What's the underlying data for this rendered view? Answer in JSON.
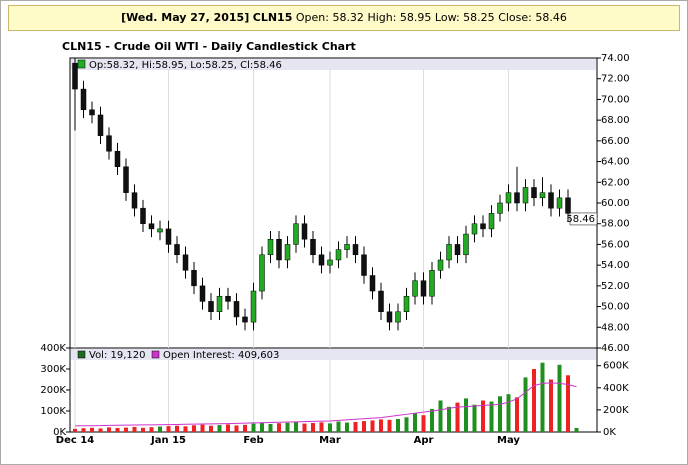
{
  "header": {
    "date": "[Wed. May 27, 2015]",
    "symbol": "CLN15",
    "open": "Open: 58.32",
    "high": "High: 58.95",
    "low": "Low: 58.25",
    "close": "Close: 58.46"
  },
  "chart_data": [
    {
      "type": "candlestick",
      "title": "CLN15 - Crude Oil WTI - Daily Candlestick Chart",
      "legend": "Op:58.32, Hi:58.95, Lo:58.25, Cl:58.46",
      "open": [
        73.5,
        71.0,
        69.0,
        68.5,
        66.5,
        65.0,
        63.5,
        61.0,
        59.5,
        58.0,
        57.2,
        57.5,
        56.0,
        55.0,
        53.5,
        52.0,
        50.5,
        49.5,
        51.0,
        50.5,
        49.0,
        48.5,
        51.5,
        55.0,
        56.5,
        54.5,
        56.0,
        58.0,
        56.5,
        55.0,
        54.0,
        54.5,
        55.5,
        56.0,
        55.0,
        53.0,
        51.5,
        49.5,
        48.5,
        49.5,
        51.0,
        52.5,
        51.0,
        53.5,
        54.5,
        56.0,
        55.0,
        57.0,
        58.0,
        57.5,
        59.0,
        60.0,
        61.0,
        60.0,
        61.5,
        60.5,
        61.0,
        59.5,
        60.5,
        58.32
      ],
      "high": [
        74.0,
        71.8,
        69.8,
        69.3,
        67.3,
        65.8,
        64.3,
        61.8,
        60.3,
        58.8,
        58.3,
        58.3,
        56.8,
        55.8,
        54.3,
        52.8,
        51.3,
        51.8,
        51.8,
        51.3,
        49.8,
        52.3,
        55.8,
        57.3,
        57.3,
        56.8,
        58.8,
        58.8,
        57.3,
        55.8,
        55.3,
        56.3,
        56.8,
        56.8,
        55.8,
        53.8,
        52.3,
        50.3,
        50.3,
        51.8,
        53.3,
        53.3,
        54.3,
        55.3,
        56.8,
        56.8,
        57.8,
        58.8,
        58.8,
        59.8,
        60.8,
        61.8,
        63.5,
        62.3,
        62.3,
        62.5,
        61.8,
        61.3,
        61.3,
        58.95
      ],
      "low": [
        67.0,
        68.2,
        67.7,
        65.7,
        64.2,
        62.7,
        60.2,
        58.7,
        57.2,
        56.7,
        56.4,
        55.2,
        54.2,
        52.7,
        51.2,
        49.7,
        48.7,
        48.7,
        49.7,
        48.2,
        47.7,
        47.7,
        50.7,
        54.2,
        53.7,
        53.7,
        55.2,
        55.7,
        54.2,
        53.2,
        53.2,
        53.7,
        54.7,
        54.2,
        52.2,
        50.7,
        48.7,
        47.7,
        47.7,
        48.7,
        50.2,
        50.2,
        50.2,
        52.7,
        53.7,
        54.2,
        54.2,
        56.2,
        56.7,
        56.7,
        58.2,
        59.2,
        59.2,
        59.2,
        59.7,
        59.7,
        58.7,
        58.7,
        58.2,
        58.25
      ],
      "close": [
        71.0,
        69.0,
        68.5,
        66.5,
        65.0,
        63.5,
        61.0,
        59.5,
        58.0,
        57.5,
        57.5,
        56.0,
        55.0,
        53.5,
        52.0,
        50.5,
        49.5,
        51.0,
        50.5,
        49.0,
        48.5,
        51.5,
        55.0,
        56.5,
        54.5,
        56.0,
        58.0,
        56.5,
        55.0,
        54.0,
        54.5,
        55.5,
        56.0,
        55.0,
        53.0,
        51.5,
        49.5,
        48.5,
        49.5,
        51.0,
        52.5,
        51.0,
        53.5,
        54.5,
        56.0,
        55.0,
        57.0,
        58.0,
        57.5,
        59.0,
        60.0,
        61.0,
        60.0,
        61.5,
        60.5,
        61.0,
        59.5,
        60.5,
        59.0,
        58.46
      ],
      "last_label": "58.46",
      "up_color": "#22aa22",
      "down_color": "#111111",
      "ylim": [
        46,
        74
      ],
      "yticks": [
        {
          "value": 46,
          "label": "46.00"
        },
        {
          "value": 48,
          "label": "48.00"
        },
        {
          "value": 50,
          "label": "50.00"
        },
        {
          "value": 52,
          "label": "52.00"
        },
        {
          "value": 54,
          "label": "54.00"
        },
        {
          "value": 56,
          "label": "56.00"
        },
        {
          "value": 58,
          "label": "58.00"
        },
        {
          "value": 60,
          "label": "60.00"
        },
        {
          "value": 62,
          "label": "62.00"
        },
        {
          "value": 64,
          "label": "64.00"
        },
        {
          "value": 66,
          "label": "66.00"
        },
        {
          "value": 68,
          "label": "68.00"
        },
        {
          "value": 70,
          "label": "70.00"
        },
        {
          "value": 72,
          "label": "72.00"
        },
        {
          "value": 74,
          "label": "74.00"
        }
      ]
    },
    {
      "type": "bar",
      "categories": [
        "Dec 14",
        null,
        null,
        null,
        null,
        null,
        null,
        null,
        null,
        null,
        null,
        "Jan 15",
        null,
        null,
        null,
        null,
        null,
        null,
        null,
        null,
        null,
        "Feb",
        null,
        null,
        null,
        null,
        null,
        null,
        null,
        null,
        "Mar",
        null,
        null,
        null,
        null,
        null,
        null,
        null,
        null,
        null,
        null,
        "Apr",
        null,
        null,
        null,
        null,
        null,
        null,
        null,
        null,
        null,
        "May",
        null,
        null,
        null,
        null,
        null,
        null,
        null,
        null
      ],
      "series": [
        {
          "name": "Vol: 19,120",
          "color": "#1f6b1f",
          "up_color": "#1f8f1f",
          "down_color": "#ee2222",
          "values": [
            15000,
            18000,
            20000,
            17000,
            22000,
            19000,
            21000,
            24000,
            20000,
            23000,
            26000,
            28000,
            30000,
            27000,
            32000,
            35000,
            30000,
            33000,
            36000,
            31000,
            34000,
            40000,
            45000,
            38000,
            42000,
            44000,
            48000,
            40000,
            43000,
            46000,
            41000,
            50000,
            45000,
            48000,
            52000,
            55000,
            60000,
            58000,
            62000,
            70000,
            90000,
            80000,
            110000,
            150000,
            120000,
            140000,
            160000,
            130000,
            150000,
            145000,
            170000,
            180000,
            165000,
            260000,
            300000,
            330000,
            250000,
            320000,
            270000,
            19120
          ]
        },
        {
          "name": "Open Interest: 409,603",
          "color": "#cc33cc",
          "axis": "y2",
          "values": [
            55000,
            56000,
            57000,
            58000,
            60000,
            61000,
            62000,
            63000,
            64000,
            65000,
            66000,
            67000,
            68000,
            70000,
            71000,
            72000,
            74000,
            75000,
            76000,
            78000,
            80000,
            82000,
            84000,
            86000,
            88000,
            90000,
            92000,
            94000,
            96000,
            98000,
            100000,
            105000,
            110000,
            115000,
            120000,
            125000,
            130000,
            140000,
            150000,
            160000,
            170000,
            180000,
            190000,
            200000,
            215000,
            225000,
            230000,
            235000,
            240000,
            245000,
            250000,
            270000,
            300000,
            360000,
            420000,
            440000,
            445000,
            440000,
            430000,
            409603
          ]
        }
      ],
      "ylim": [
        0,
        400000
      ],
      "yticks": [
        {
          "value": 0,
          "label": "0K"
        },
        {
          "value": 100000,
          "label": "100K"
        },
        {
          "value": 200000,
          "label": "200K"
        },
        {
          "value": 300000,
          "label": "300K"
        },
        {
          "value": 400000,
          "label": "400K"
        }
      ],
      "y2lim": [
        0,
        760000
      ],
      "y2ticks": [
        {
          "value": 0,
          "label": "0K"
        },
        {
          "value": 200000,
          "label": "200K"
        },
        {
          "value": 400000,
          "label": "400K"
        },
        {
          "value": 600000,
          "label": "600K"
        }
      ],
      "grid": true
    }
  ]
}
